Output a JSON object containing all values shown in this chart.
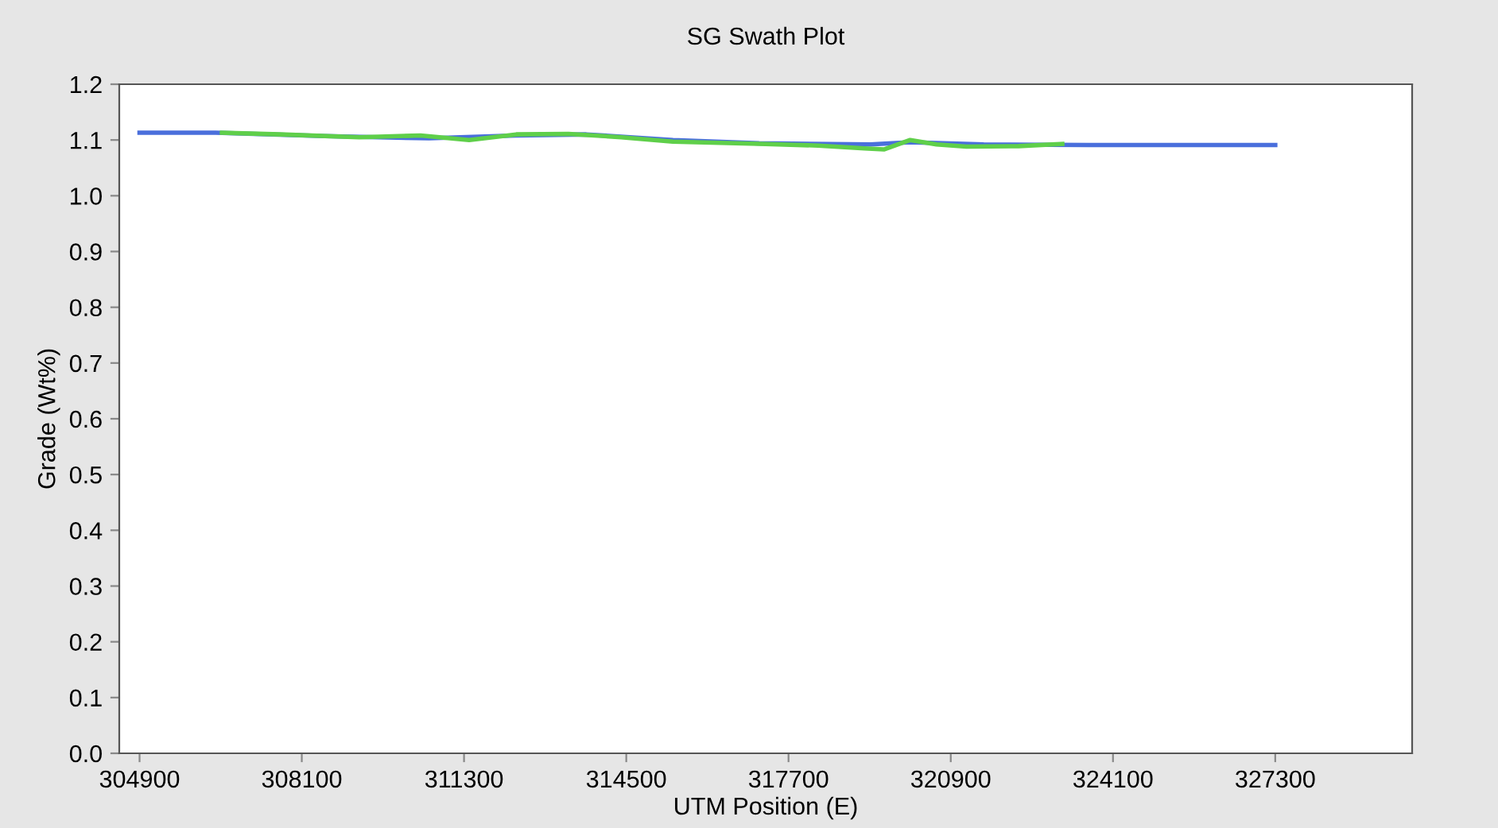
{
  "chart_data": {
    "type": "line",
    "title": "SG Swath Plot",
    "xlabel": "UTM Position (E)",
    "ylabel": "Grade (Wt%)",
    "xlim": [
      304500,
      330000
    ],
    "xticks": [
      304900,
      308100,
      311300,
      314500,
      317700,
      320900,
      324100,
      327300
    ],
    "ylim": [
      0,
      1.2
    ],
    "yticks": [
      {
        "value": 0,
        "label": "0.0"
      },
      0.1,
      0.2,
      0.3,
      0.4,
      0.5,
      0.6,
      0.7,
      0.8,
      0.9,
      {
        "value": 1,
        "label": "1.0"
      },
      1.1,
      1.2
    ],
    "grid": false,
    "marker": "none",
    "line_style": "solid",
    "series": [
      {
        "color": "#4a6fdc",
        "x": [
          304900,
          306400,
          308550,
          310610,
          312330,
          313710,
          315420,
          317120,
          319320,
          320100,
          321550,
          323620,
          327300
        ],
        "values": [
          1.113,
          1.113,
          1.107,
          1.103,
          1.108,
          1.11,
          1.1,
          1.094,
          1.092,
          1.096,
          1.092,
          1.091,
          1.091
        ]
      },
      {
        "color": "#5fcf4a",
        "x": [
          306525,
          307670,
          309235,
          310440,
          311400,
          312330,
          313360,
          314400,
          315420,
          317120,
          318290,
          319200,
          319580,
          320100,
          320620,
          321210,
          322240,
          323100
        ],
        "values": [
          1.113,
          1.11,
          1.105,
          1.108,
          1.1,
          1.11,
          1.111,
          1.105,
          1.097,
          1.093,
          1.09,
          1.085,
          1.083,
          1.1,
          1.092,
          1.088,
          1.089,
          1.093
        ]
      }
    ]
  }
}
